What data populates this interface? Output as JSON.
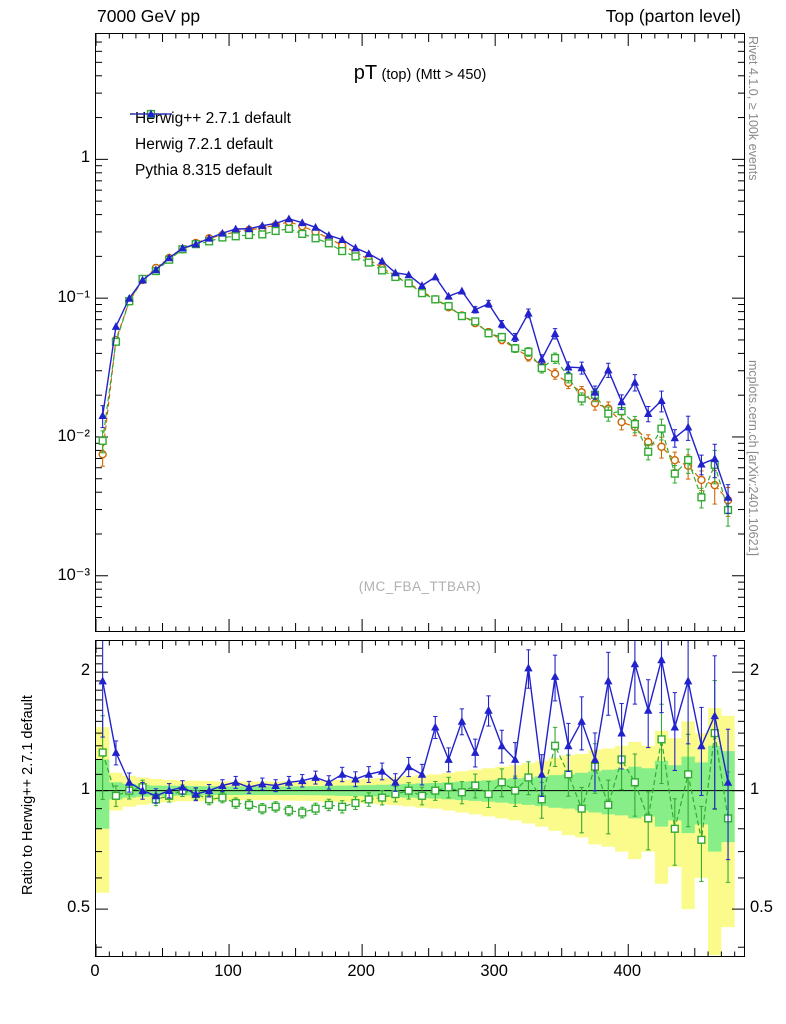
{
  "header": {
    "left": "7000 GeV pp",
    "right": "Top (parton level)"
  },
  "side_notes": {
    "top_right": "Rivet 4.1.0, ≥ 100k events",
    "bottom_right": "mcplots.cern.ch [arXiv:2401.10621]"
  },
  "watermark": "(MC_FBA_TTBAR)",
  "chart_data": [
    {
      "type": "line",
      "panel": "main",
      "title_main": "pT",
      "title_paren": "(top)",
      "cut_label": "(Mtt > 450)",
      "x_range": [
        0,
        487
      ],
      "y_scale": "log",
      "y_range": [
        0.0004,
        8
      ],
      "bin_width": 10,
      "x": [
        5,
        15,
        25,
        35,
        45,
        55,
        65,
        75,
        85,
        95,
        105,
        115,
        125,
        135,
        145,
        155,
        165,
        175,
        185,
        195,
        205,
        215,
        225,
        235,
        245,
        255,
        265,
        275,
        285,
        295,
        305,
        315,
        325,
        335,
        345,
        355,
        365,
        375,
        385,
        395,
        405,
        415,
        425,
        435,
        445,
        455,
        465,
        475
      ],
      "series": [
        {
          "name": "Herwig++ 2.7.1 default",
          "color": "#cc6600",
          "marker": "circle-open",
          "line": "dashed",
          "values": [
            0.0075,
            0.05,
            0.095,
            0.135,
            0.165,
            0.195,
            0.225,
            0.25,
            0.27,
            0.285,
            0.3,
            0.31,
            0.32,
            0.335,
            0.355,
            0.33,
            0.3,
            0.27,
            0.24,
            0.215,
            0.19,
            0.165,
            0.145,
            0.128,
            0.112,
            0.098,
            0.086,
            0.075,
            0.066,
            0.057,
            0.05,
            0.0435,
            0.038,
            0.033,
            0.0285,
            0.0245,
            0.021,
            0.0175,
            0.016,
            0.0128,
            0.0118,
            0.0092,
            0.0085,
            0.0068,
            0.0062,
            0.0049,
            0.0045,
            0.0035
          ]
        },
        {
          "name": "Herwig 7.2.1 default",
          "color": "#33aa33",
          "marker": "square-open",
          "line": "dashed",
          "ratio_to_first": [
            1.25,
            0.97,
            1.0,
            1.02,
            0.95,
            0.97,
            1.0,
            0.98,
            0.95,
            0.96,
            0.93,
            0.92,
            0.9,
            0.91,
            0.89,
            0.88,
            0.9,
            0.92,
            0.91,
            0.93,
            0.95,
            0.96,
            0.98,
            1.0,
            0.97,
            1.0,
            1.02,
            0.99,
            1.03,
            0.98,
            1.05,
            1.0,
            1.08,
            0.95,
            1.3,
            1.1,
            0.9,
            1.15,
            0.92,
            1.2,
            1.05,
            0.85,
            1.35,
            0.8,
            1.1,
            0.75,
            1.4,
            0.85
          ]
        },
        {
          "name": "Pythia 8.315 default",
          "color": "#2222cc",
          "marker": "triangle-filled",
          "line": "solid",
          "ratio_to_first": [
            1.9,
            1.25,
            1.05,
            1.0,
            0.97,
            1.0,
            1.02,
            0.98,
            1.0,
            1.03,
            1.05,
            1.02,
            1.04,
            1.03,
            1.05,
            1.06,
            1.08,
            1.05,
            1.1,
            1.07,
            1.1,
            1.12,
            1.05,
            1.15,
            1.1,
            1.45,
            1.2,
            1.5,
            1.25,
            1.6,
            1.3,
            1.2,
            2.05,
            1.1,
            1.95,
            1.3,
            1.5,
            1.2,
            1.9,
            1.4,
            2.1,
            1.6,
            2.15,
            1.45,
            1.9,
            1.3,
            1.55,
            1.05
          ]
        }
      ],
      "err": {
        "main_scale": 0.9
      },
      "yticks": [
        {
          "v": 1,
          "label": "1"
        },
        {
          "v": 0.1,
          "label": "10⁻¹"
        },
        {
          "v": 0.01,
          "label": "10⁻²"
        },
        {
          "v": 0.001,
          "label": "10⁻³"
        }
      ],
      "xticks": [
        {
          "v": 0,
          "label": "0"
        },
        {
          "v": 100,
          "label": "100"
        },
        {
          "v": 200,
          "label": "200"
        },
        {
          "v": 300,
          "label": "300"
        },
        {
          "v": 400,
          "label": "400"
        }
      ]
    },
    {
      "type": "ratio",
      "panel": "ratio",
      "ylabel": "Ratio to Herwig++ 2.7.1 default",
      "y_scale": "log",
      "y_range": [
        0.38,
        2.4
      ],
      "reference_line": 1,
      "bands": {
        "outer_color": "#fbfb8b",
        "inner_color": "#88ee88",
        "yellow_half": [
          0.45,
          0.11,
          0.09,
          0.08,
          0.07,
          0.065,
          0.06,
          0.06,
          0.058,
          0.055,
          0.055,
          0.055,
          0.055,
          0.055,
          0.056,
          0.058,
          0.06,
          0.062,
          0.065,
          0.068,
          0.072,
          0.077,
          0.082,
          0.088,
          0.095,
          0.1,
          0.11,
          0.12,
          0.13,
          0.14,
          0.15,
          0.16,
          0.175,
          0.19,
          0.21,
          0.23,
          0.24,
          0.27,
          0.28,
          0.3,
          0.33,
          0.3,
          0.42,
          0.36,
          0.5,
          0.4,
          0.62,
          0.55
        ],
        "green_half": [
          0.2,
          0.05,
          0.04,
          0.035,
          0.03,
          0.03,
          0.028,
          0.027,
          0.026,
          0.025,
          0.025,
          0.025,
          0.025,
          0.025,
          0.025,
          0.026,
          0.027,
          0.028,
          0.03,
          0.031,
          0.033,
          0.035,
          0.037,
          0.04,
          0.043,
          0.046,
          0.05,
          0.054,
          0.058,
          0.063,
          0.068,
          0.074,
          0.08,
          0.087,
          0.095,
          0.1,
          0.11,
          0.12,
          0.13,
          0.135,
          0.15,
          0.14,
          0.19,
          0.16,
          0.22,
          0.18,
          0.3,
          0.26
        ]
      },
      "err": {
        "herwig7_scale": 1.2,
        "pythia_scale": 1.4
      },
      "yticks": [
        {
          "v": 2,
          "label": "2"
        },
        {
          "v": 1,
          "label": "1"
        },
        {
          "v": 0.5,
          "label": "0.5"
        }
      ]
    }
  ]
}
